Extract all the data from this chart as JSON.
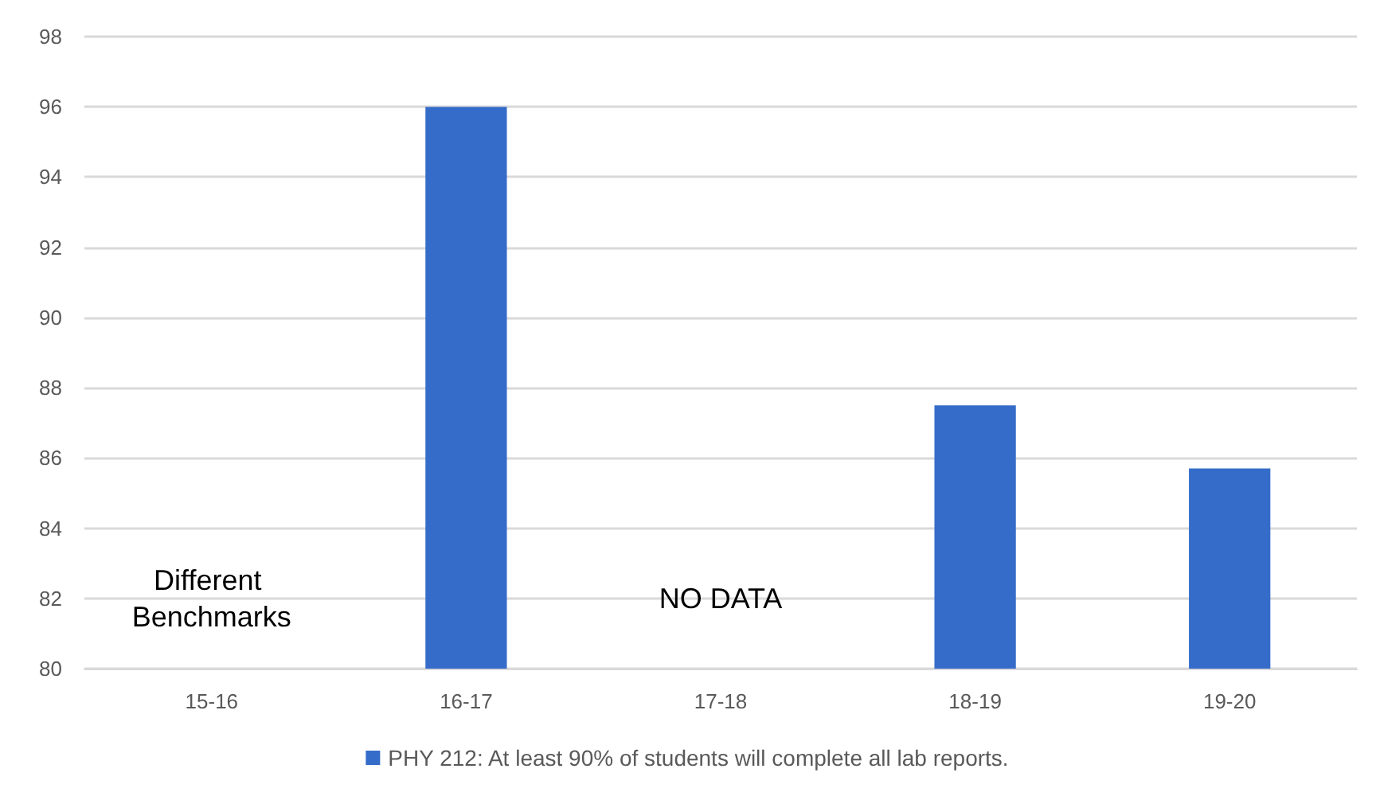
{
  "chart_data": {
    "type": "bar",
    "categories": [
      "15-16",
      "16-17",
      "17-18",
      "18-19",
      "19-20"
    ],
    "series": [
      {
        "name": "PHY 212: At least 90% of students will complete all lab reports.",
        "color": "#366cc9",
        "values": [
          null,
          96,
          null,
          87.5,
          85.7
        ]
      }
    ],
    "ylim": [
      80,
      98
    ],
    "yticks": [
      80,
      82,
      84,
      86,
      88,
      90,
      92,
      94,
      96,
      98
    ],
    "grid": "y",
    "legend": "bottom",
    "annotations": [
      "Different Benchmarks",
      "NO DATA"
    ]
  }
}
